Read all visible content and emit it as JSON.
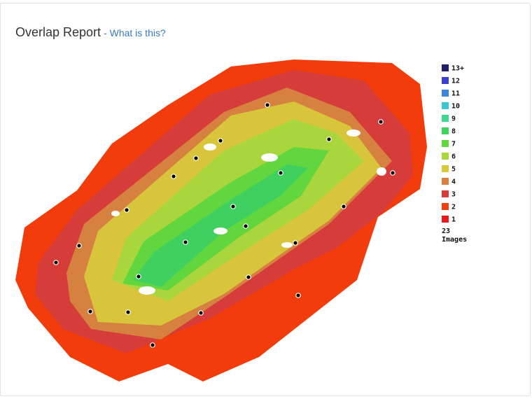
{
  "header": {
    "title": "Overlap Report",
    "link": "- What is this?"
  },
  "legend": {
    "items": [
      {
        "label": "13+",
        "color": "#1f1f6e"
      },
      {
        "label": "12",
        "color": "#4040d0"
      },
      {
        "label": "11",
        "color": "#3a86d8"
      },
      {
        "label": "10",
        "color": "#3cc8d2"
      },
      {
        "label": "9",
        "color": "#3cd890"
      },
      {
        "label": "8",
        "color": "#40d45a"
      },
      {
        "label": "7",
        "color": "#60d83c"
      },
      {
        "label": "6",
        "color": "#a8d83a"
      },
      {
        "label": "5",
        "color": "#d8c83a"
      },
      {
        "label": "4",
        "color": "#d88040"
      },
      {
        "label": "3",
        "color": "#d83a3a"
      },
      {
        "label": "2",
        "color": "#f04010"
      },
      {
        "label": "1",
        "color": "#e81a1a"
      }
    ],
    "image_count": 23,
    "image_unit": "Images"
  }
}
